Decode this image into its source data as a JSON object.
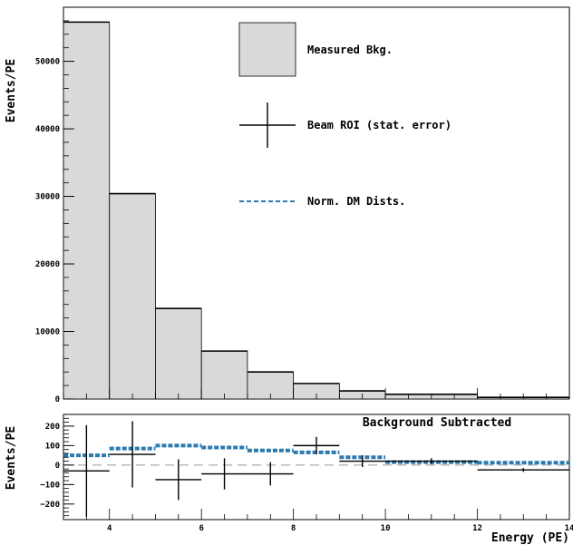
{
  "chart_data": [
    {
      "type": "bar",
      "panel": "top",
      "ylabel": "Events/PE",
      "xlim": [
        3,
        14
      ],
      "ylim": [
        0,
        58000
      ],
      "y_ticks": [
        "0",
        "10000",
        "20000",
        "30000",
        "40000",
        "50000"
      ],
      "y_tick_values": [
        0,
        10000,
        20000,
        30000,
        40000,
        50000
      ],
      "bin_edges": [
        3,
        4,
        5,
        6,
        7,
        8,
        9,
        10,
        12,
        14
      ],
      "series": [
        {
          "name": "Measured Bkg.",
          "kind": "filled-histogram",
          "color": "#d9d9d9",
          "values": [
            55800,
            30400,
            13400,
            7100,
            4000,
            2300,
            1200,
            700,
            250
          ]
        },
        {
          "name": "Beam ROI (stat. error)",
          "kind": "points-with-errors",
          "color": "#000000",
          "values": [
            55800,
            30400,
            13400,
            7100,
            4000,
            2300,
            1200,
            700,
            250
          ]
        },
        {
          "name": "Norm. DM Dists.",
          "kind": "dashed-line",
          "color": "#2a7ab0",
          "values": []
        }
      ],
      "legend": {
        "placement": "top-right",
        "entries": [
          "Measured Bkg.",
          "Beam ROI (stat. error)",
          "Norm. DM Dists."
        ]
      }
    },
    {
      "type": "scatter",
      "panel": "bottom",
      "title": "Background Subtracted",
      "xlabel": "Energy (PE)",
      "ylabel": "Events/PE",
      "xlim": [
        3,
        14
      ],
      "ylim": [
        -280,
        260
      ],
      "x_ticks": [
        "4",
        "6",
        "8",
        "10",
        "12",
        "14"
      ],
      "x_tick_values": [
        4,
        6,
        8,
        10,
        12,
        14
      ],
      "y_ticks": [
        "−200",
        "−100",
        "0",
        "100",
        "200"
      ],
      "y_tick_values": [
        -200,
        -100,
        0,
        100,
        200
      ],
      "series": [
        {
          "name": "Beam ROI (stat. error)",
          "x": [
            3.5,
            4.5,
            5.5,
            6.5,
            7.5,
            8.5,
            9.5,
            11,
            13
          ],
          "x_low": [
            3,
            4,
            5,
            6,
            7,
            8,
            9,
            10,
            12
          ],
          "x_high": [
            4,
            5,
            6,
            7,
            8,
            9,
            10,
            12,
            14
          ],
          "y": [
            -30,
            55,
            -75,
            -45,
            -45,
            100,
            20,
            20,
            -25
          ],
          "y_err": [
            235,
            170,
            105,
            80,
            60,
            45,
            30,
            15,
            10
          ]
        },
        {
          "name": "Norm. DM Dists.",
          "color": "#2a7ab0",
          "x_low": [
            3,
            4,
            5,
            6,
            7,
            8,
            9,
            10,
            12
          ],
          "x_high": [
            4,
            5,
            6,
            7,
            8,
            9,
            10,
            12,
            14
          ],
          "y": [
            50,
            85,
            100,
            90,
            75,
            65,
            40,
            15,
            12
          ]
        }
      ]
    }
  ]
}
